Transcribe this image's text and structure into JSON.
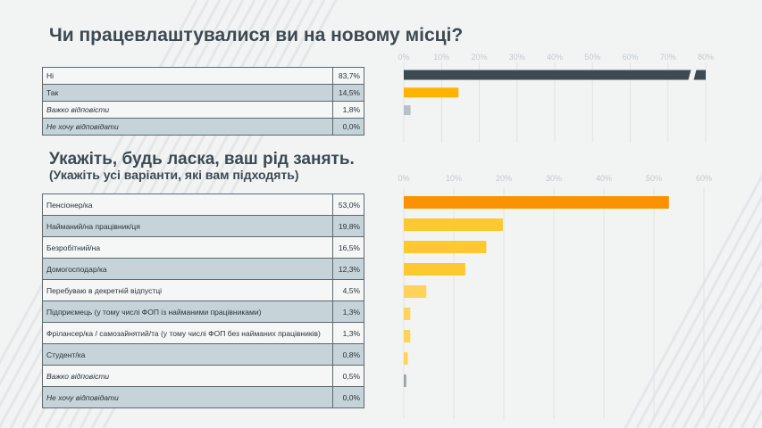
{
  "colors": {
    "background": "#f2f4f4",
    "stripe": "#e3e7e8",
    "dark_bar": "#3d4a52",
    "orange": "#fc9200",
    "amber": "#fcb400",
    "yellow": "#fdc930",
    "light_yellow": "#fdd35a",
    "gray_bar": "#9aa5aa",
    "grid": "#dfe3e5",
    "row_shade": "#c6d3d8"
  },
  "sections": [
    {
      "title": "Чи працевлаштувалися ви на новому місці?",
      "subtitle": "",
      "rows": [
        {
          "label": "Ні",
          "value": "83,7%",
          "italic": false
        },
        {
          "label": "Так",
          "value": "14,5%",
          "italic": false
        },
        {
          "label": "Важко відповісти",
          "value": "1,8%",
          "italic": true
        },
        {
          "label": "Не хочу відповідати",
          "value": "0,0%",
          "italic": true
        }
      ]
    },
    {
      "title": "Укажіть, будь ласка, ваш рід занять.",
      "subtitle": "(Укажіть усі варіанти, які вам підходять)",
      "rows": [
        {
          "label": "Пенсіонер/ка",
          "value": "53,0%",
          "italic": false
        },
        {
          "label": "Найманий/на працівник/ця",
          "value": "19,8%",
          "italic": false
        },
        {
          "label": "Безробітний/на",
          "value": "16,5%",
          "italic": false
        },
        {
          "label": "Домогосподар/ка",
          "value": "12,3%",
          "italic": false
        },
        {
          "label": "Перебуваю в декретній відпустці",
          "value": "4,5%",
          "italic": false
        },
        {
          "label": "Підприємець (у тому числі ФОП із найманими працівниками)",
          "value": "1,3%",
          "italic": false
        },
        {
          "label": "Фрілансер/ка / самозайнятий/та (у тому числі ФОП без найманих працівників)",
          "value": "1,3%",
          "italic": false
        },
        {
          "label": "Студент/ка",
          "value": "0,8%",
          "italic": false
        },
        {
          "label": "Важко відповісти",
          "value": "0,5%",
          "italic": true
        },
        {
          "label": "Не хочу відповідати",
          "value": "0,0%",
          "italic": true
        }
      ]
    }
  ],
  "chart_data": [
    {
      "type": "bar",
      "orientation": "horizontal",
      "title": "Чи працевлаштувалися ви на новому місці?",
      "categories": [
        "Ні",
        "Так",
        "Важко відповісти",
        "Не хочу відповідати"
      ],
      "values": [
        83.7,
        14.5,
        1.8,
        0.0
      ],
      "colors": [
        "#3d4a52",
        "#fcb400",
        "#b7c0c4",
        "#b7c0c4"
      ],
      "xlim": [
        0,
        80
      ],
      "xticks": [
        "0%",
        "10%",
        "20%",
        "30%",
        "40%",
        "50%",
        "60%",
        "70%",
        "80%"
      ],
      "axis_break": true,
      "grid": true
    },
    {
      "type": "bar",
      "orientation": "horizontal",
      "title": "Укажіть, будь ласка, ваш рід занять.",
      "categories": [
        "Пенсіонер/ка",
        "Найманий/на працівник/ця",
        "Безробітний/на",
        "Домогосподар/ка",
        "Перебуваю в декретній відпустці",
        "Підприємець (у тому числі ФОП із найманими працівниками)",
        "Фрілансер/ка / самозайнятий/та (у тому числі ФОП без найманих працівників)",
        "Студент/ка",
        "Важко відповісти",
        "Не хочу відповідати"
      ],
      "values": [
        53.0,
        19.8,
        16.5,
        12.3,
        4.5,
        1.3,
        1.3,
        0.8,
        0.5,
        0.0
      ],
      "colors": [
        "#fc9200",
        "#fdc930",
        "#fdc930",
        "#fdc930",
        "#fdd35a",
        "#fdd35a",
        "#fdd35a",
        "#fdd35a",
        "#9aa5aa",
        "#9aa5aa"
      ],
      "xlim": [
        0,
        60
      ],
      "xticks": [
        "0%",
        "10%",
        "20%",
        "30%",
        "40%",
        "50%",
        "60%"
      ],
      "grid": true
    }
  ]
}
